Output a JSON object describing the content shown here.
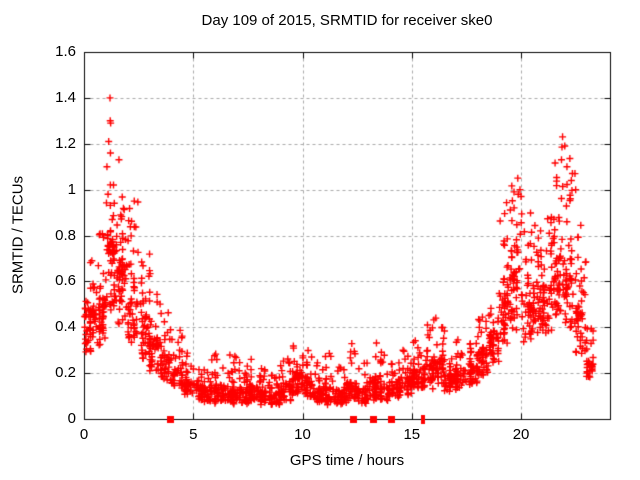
{
  "chart_data": {
    "type": "scatter",
    "title": "Day 109 of 2015, SRMTID for receiver ske0",
    "xlabel": "GPS time / hours",
    "ylabel": "SRMTID / TECUs",
    "xlim": [
      0,
      24.07
    ],
    "ylim": [
      0,
      1.6
    ],
    "x_ticks": [
      "0",
      "5",
      "10",
      "15",
      "20"
    ],
    "y_ticks": [
      "0",
      "0.2",
      "0.4",
      "0.6",
      "0.8",
      "1",
      "1.2",
      "1.4",
      "1.6"
    ],
    "grid": {
      "style": "dashed",
      "color": "#a8a8a8",
      "legend": "off"
    },
    "axis_color": "#000000",
    "marker": {
      "shape": "plus",
      "color": "#ff0000",
      "size": 7
    },
    "series": [
      {
        "name": "SRMTID",
        "note": "dense scatter summarized as half-hour bands [x_start, x_end, n_points, y_min, y_typical, y_max] read from the plot",
        "bands": [
          [
            0.0,
            0.5,
            55,
            0.22,
            0.45,
            0.75
          ],
          [
            0.5,
            1.0,
            52,
            0.25,
            0.48,
            0.82
          ],
          [
            1.0,
            1.5,
            60,
            0.35,
            0.72,
            1.08
          ],
          [
            1.5,
            2.0,
            56,
            0.32,
            0.62,
            1.0
          ],
          [
            2.0,
            2.5,
            50,
            0.26,
            0.5,
            0.95
          ],
          [
            2.5,
            3.0,
            46,
            0.2,
            0.4,
            0.72
          ],
          [
            3.0,
            3.5,
            46,
            0.16,
            0.32,
            0.65
          ],
          [
            3.5,
            4.0,
            42,
            0.13,
            0.26,
            0.52
          ],
          [
            4.0,
            4.5,
            40,
            0.1,
            0.2,
            0.42
          ],
          [
            4.5,
            5.0,
            40,
            0.08,
            0.15,
            0.3
          ],
          [
            5.0,
            5.5,
            42,
            0.06,
            0.13,
            0.26
          ],
          [
            5.5,
            6.0,
            42,
            0.05,
            0.12,
            0.28
          ],
          [
            6.0,
            6.5,
            42,
            0.05,
            0.13,
            0.32
          ],
          [
            6.5,
            7.0,
            42,
            0.05,
            0.12,
            0.28
          ],
          [
            7.0,
            7.5,
            42,
            0.05,
            0.12,
            0.25
          ],
          [
            7.5,
            8.0,
            42,
            0.05,
            0.13,
            0.26
          ],
          [
            8.0,
            8.5,
            42,
            0.04,
            0.11,
            0.22
          ],
          [
            8.5,
            9.0,
            40,
            0.04,
            0.1,
            0.2
          ],
          [
            9.0,
            9.5,
            40,
            0.05,
            0.13,
            0.28
          ],
          [
            9.5,
            10.0,
            46,
            0.08,
            0.18,
            0.35
          ],
          [
            10.0,
            10.5,
            44,
            0.07,
            0.16,
            0.32
          ],
          [
            10.5,
            11.0,
            40,
            0.05,
            0.12,
            0.25
          ],
          [
            11.0,
            11.5,
            40,
            0.04,
            0.12,
            0.3
          ],
          [
            11.5,
            12.0,
            40,
            0.04,
            0.11,
            0.25
          ],
          [
            12.0,
            12.5,
            42,
            0.06,
            0.14,
            0.33
          ],
          [
            12.5,
            13.0,
            40,
            0.05,
            0.12,
            0.28
          ],
          [
            13.0,
            13.5,
            42,
            0.06,
            0.15,
            0.35
          ],
          [
            13.5,
            14.0,
            40,
            0.05,
            0.13,
            0.3
          ],
          [
            14.0,
            14.5,
            40,
            0.07,
            0.15,
            0.3
          ],
          [
            14.5,
            15.0,
            40,
            0.08,
            0.17,
            0.32
          ],
          [
            15.0,
            15.5,
            42,
            0.1,
            0.2,
            0.35
          ],
          [
            15.5,
            16.0,
            42,
            0.1,
            0.22,
            0.42
          ],
          [
            16.0,
            16.5,
            40,
            0.12,
            0.24,
            0.45
          ],
          [
            16.5,
            17.0,
            40,
            0.1,
            0.18,
            0.3
          ],
          [
            17.0,
            17.5,
            42,
            0.1,
            0.2,
            0.38
          ],
          [
            17.5,
            18.0,
            42,
            0.12,
            0.22,
            0.35
          ],
          [
            18.0,
            18.5,
            45,
            0.15,
            0.28,
            0.45
          ],
          [
            18.5,
            19.0,
            45,
            0.2,
            0.35,
            0.6
          ],
          [
            19.0,
            19.5,
            50,
            0.25,
            0.5,
            0.95
          ],
          [
            19.5,
            20.0,
            52,
            0.3,
            0.6,
            1.02
          ],
          [
            20.0,
            20.5,
            45,
            0.25,
            0.5,
            0.9
          ],
          [
            20.5,
            21.0,
            48,
            0.3,
            0.55,
            0.85
          ],
          [
            21.0,
            21.5,
            48,
            0.3,
            0.55,
            0.9
          ],
          [
            21.5,
            22.0,
            52,
            0.35,
            0.65,
            1.2
          ],
          [
            22.0,
            22.5,
            50,
            0.3,
            0.6,
            1.15
          ],
          [
            22.5,
            23.0,
            45,
            0.2,
            0.45,
            0.9
          ],
          [
            23.0,
            23.3,
            30,
            0.15,
            0.25,
            0.4
          ]
        ],
        "notable_points": [
          [
            1.19,
            1.4
          ],
          [
            1.2,
            1.3
          ],
          [
            1.22,
            1.29
          ],
          [
            1.13,
            1.21
          ],
          [
            1.21,
            1.16
          ],
          [
            1.6,
            1.13
          ],
          [
            1.05,
            1.1
          ],
          [
            1.1,
            0.98
          ],
          [
            1.35,
            1.02
          ],
          [
            2.3,
            0.95
          ],
          [
            14.6,
            0.3
          ],
          [
            16.1,
            0.44
          ],
          [
            19.85,
            1.05
          ],
          [
            19.95,
            1.0
          ],
          [
            20.0,
            0.97
          ],
          [
            21.9,
            1.23
          ],
          [
            22.0,
            1.19
          ],
          [
            21.85,
            1.13
          ],
          [
            22.1,
            1.1
          ],
          [
            22.35,
            1.07
          ],
          [
            22.5,
            1.0
          ]
        ]
      }
    ],
    "flagged_squares": {
      "shape": "filled-square",
      "color": "#ff0000",
      "y": 0,
      "x": [
        3.94,
        12.33,
        13.21,
        14.05
      ]
    },
    "baseline_dashes": {
      "shape": "vertical-dash",
      "color": "#ff0000",
      "y": 0,
      "x": [
        15.47,
        15.58
      ]
    }
  }
}
